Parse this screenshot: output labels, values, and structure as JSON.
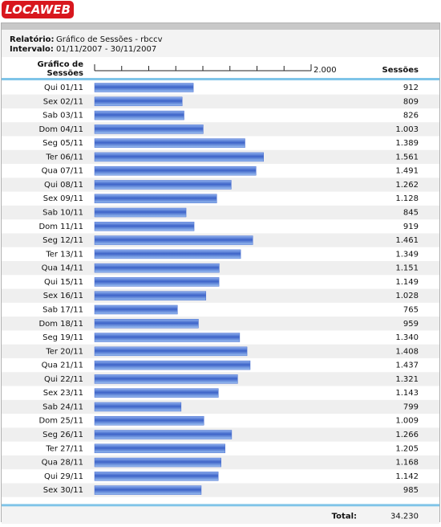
{
  "header": {
    "logo": "LOCAWEB",
    "report_label": "Relatório:",
    "report_value": "Gráfico de Sessões - rbccv",
    "interval_label": "Intervalo:",
    "interval_value": "01/11/2007 - 30/11/2007"
  },
  "chart_data": {
    "type": "hbar",
    "category_header": "Gráfico de Sessões",
    "value_header": "Sessões",
    "color": "#4a6fd0",
    "categories": [
      "Qui 01/11",
      "Sex 02/11",
      "Sab 03/11",
      "Dom 04/11",
      "Seg 05/11",
      "Ter 06/11",
      "Qua 07/11",
      "Qui 08/11",
      "Sex 09/11",
      "Sab 10/11",
      "Dom 11/11",
      "Seg 12/11",
      "Ter 13/11",
      "Qua 14/11",
      "Qui 15/11",
      "Sex 16/11",
      "Sab 17/11",
      "Dom 18/11",
      "Seg 19/11",
      "Ter 20/11",
      "Qua 21/11",
      "Qui 22/11",
      "Sex 23/11",
      "Sab 24/11",
      "Dom 25/11",
      "Seg 26/11",
      "Ter 27/11",
      "Qua 28/11",
      "Qui 29/11",
      "Sex 30/11"
    ],
    "values": [
      912,
      809,
      826,
      1003,
      1389,
      1561,
      1491,
      1262,
      1128,
      845,
      919,
      1461,
      1349,
      1151,
      1149,
      1028,
      765,
      959,
      1340,
      1408,
      1437,
      1321,
      1143,
      799,
      1009,
      1266,
      1205,
      1168,
      1142,
      985
    ],
    "value_labels": [
      "912",
      "809",
      "826",
      "1.003",
      "1.389",
      "1.561",
      "1.491",
      "1.262",
      "1.128",
      "845",
      "919",
      "1.461",
      "1.349",
      "1.151",
      "1.149",
      "1.028",
      "765",
      "959",
      "1.340",
      "1.408",
      "1.437",
      "1.321",
      "1.143",
      "799",
      "1.009",
      "1.266",
      "1.205",
      "1.168",
      "1.142",
      "985"
    ],
    "xlim": [
      0,
      2000
    ],
    "xticks": [
      {
        "value": 2000,
        "label": "2.000"
      }
    ],
    "xminorticks": [
      250,
      500,
      750,
      1000,
      1250,
      1500,
      1750
    ],
    "total_label": "Total:",
    "total": {
      "value": 34230,
      "label": "34.230"
    }
  }
}
